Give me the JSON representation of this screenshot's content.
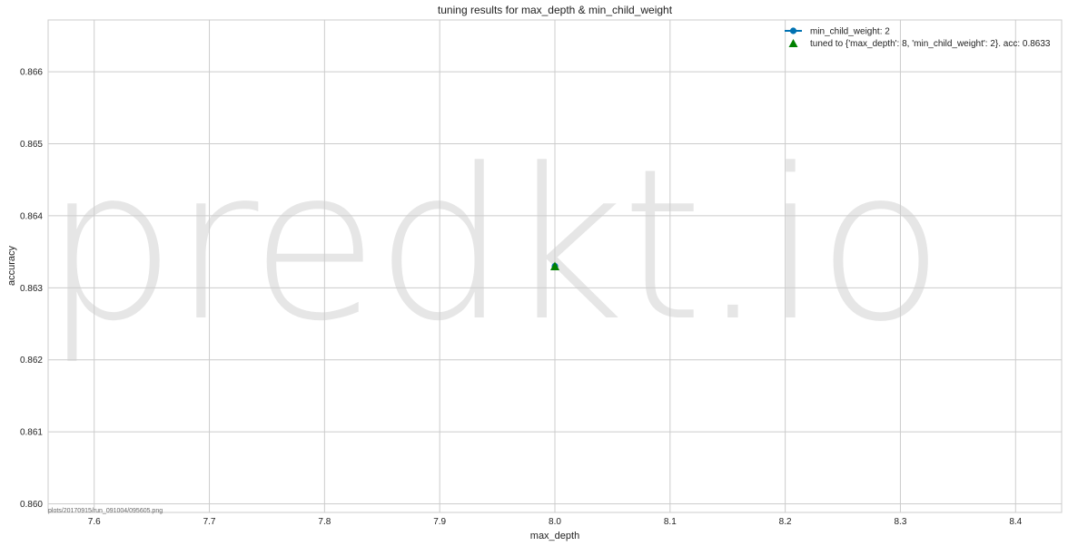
{
  "chart_data": {
    "type": "line",
    "title": "tuning results for max_depth & min_child_weight",
    "xlabel": "max_depth",
    "ylabel": "accuracy",
    "xlim": [
      7.56,
      8.44
    ],
    "ylim": [
      0.85988,
      0.86672
    ],
    "x_ticks": [
      "7.6",
      "7.7",
      "7.8",
      "7.9",
      "8.0",
      "8.1",
      "8.2",
      "8.3",
      "8.4"
    ],
    "x_tick_values": [
      7.6,
      7.7,
      7.8,
      7.9,
      8.0,
      8.1,
      8.2,
      8.3,
      8.4
    ],
    "y_ticks": [
      "0.860",
      "0.861",
      "0.862",
      "0.863",
      "0.864",
      "0.865",
      "0.866"
    ],
    "y_tick_values": [
      0.86,
      0.861,
      0.862,
      0.863,
      0.864,
      0.865,
      0.866
    ],
    "grid": true,
    "legend_position": "top-right",
    "series": [
      {
        "name": "min_child_weight: 2",
        "marker": "circle",
        "color": "#0072b2",
        "x": [
          8
        ],
        "y": [
          0.8633
        ]
      },
      {
        "name": "tuned to {'max_depth': 8, 'min_child_weight': 2}.  acc: 0.8633",
        "marker": "triangle",
        "color": "#008000",
        "x": [
          8
        ],
        "y": [
          0.8633
        ]
      }
    ]
  },
  "watermark": "predkt.io",
  "footer_note": "plots/20170915/run_091004/095605.png"
}
